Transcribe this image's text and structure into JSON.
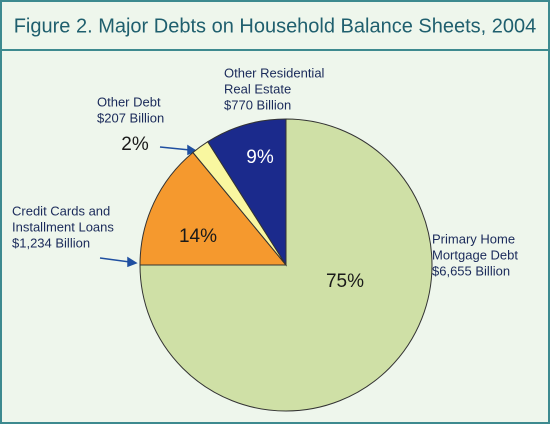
{
  "chart_data": {
    "type": "pie",
    "title": "Figure 2. Major Debts on Household Balance Sheets, 2004",
    "categories": [
      [
        "Primary Home",
        "Mortgage Debt"
      ],
      [
        "Credit Cards and",
        "Installment Loans"
      ],
      [
        "Other Debt"
      ],
      [
        "Other Residential",
        "Real Estate"
      ]
    ],
    "values": [
      75,
      14,
      2,
      9
    ],
    "value_labels": [
      "75%",
      "14%",
      "2%",
      "9%"
    ],
    "amounts": [
      6655,
      1234,
      207,
      770
    ],
    "amount_labels": [
      "$6,655 Billion",
      "$1,234 Billion",
      "$207 Billion",
      "$770 Billion"
    ],
    "colors": [
      "#cfe0a6",
      "#f5992e",
      "#f9f7a0",
      "#1b2a8c"
    ]
  }
}
